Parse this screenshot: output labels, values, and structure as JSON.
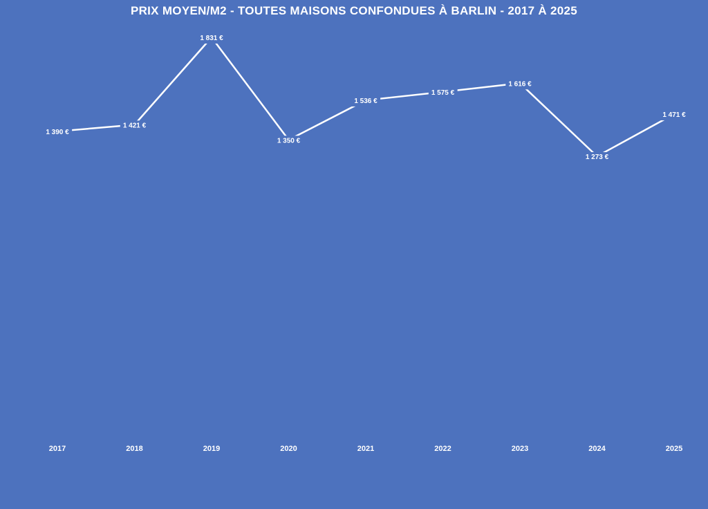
{
  "chart_data": {
    "type": "line",
    "title": "PRIX MOYEN/M2 - TOUTES MAISONS CONFONDUES À BARLIN - 2017 À 2025",
    "xlabel": "",
    "ylabel": "",
    "categories": [
      "2017",
      "2018",
      "2019",
      "2020",
      "2021",
      "2022",
      "2023",
      "2024",
      "2025"
    ],
    "series": [
      {
        "name": "Prix moyen/m2",
        "values": [
          1390,
          1421,
          1831,
          1350,
          1536,
          1575,
          1616,
          1273,
          1471
        ],
        "labels": [
          "1 390 €",
          "1 421 €",
          "1 831 €",
          "1 350 €",
          "1 536 €",
          "1 575 €",
          "1 616 €",
          "1 273 €",
          "1 471 €"
        ]
      }
    ],
    "grid": false,
    "drop_lines": true,
    "legend": "none",
    "colors": {
      "background": "#4d72be",
      "line": "#ffffff",
      "text": "#ffffff"
    }
  }
}
